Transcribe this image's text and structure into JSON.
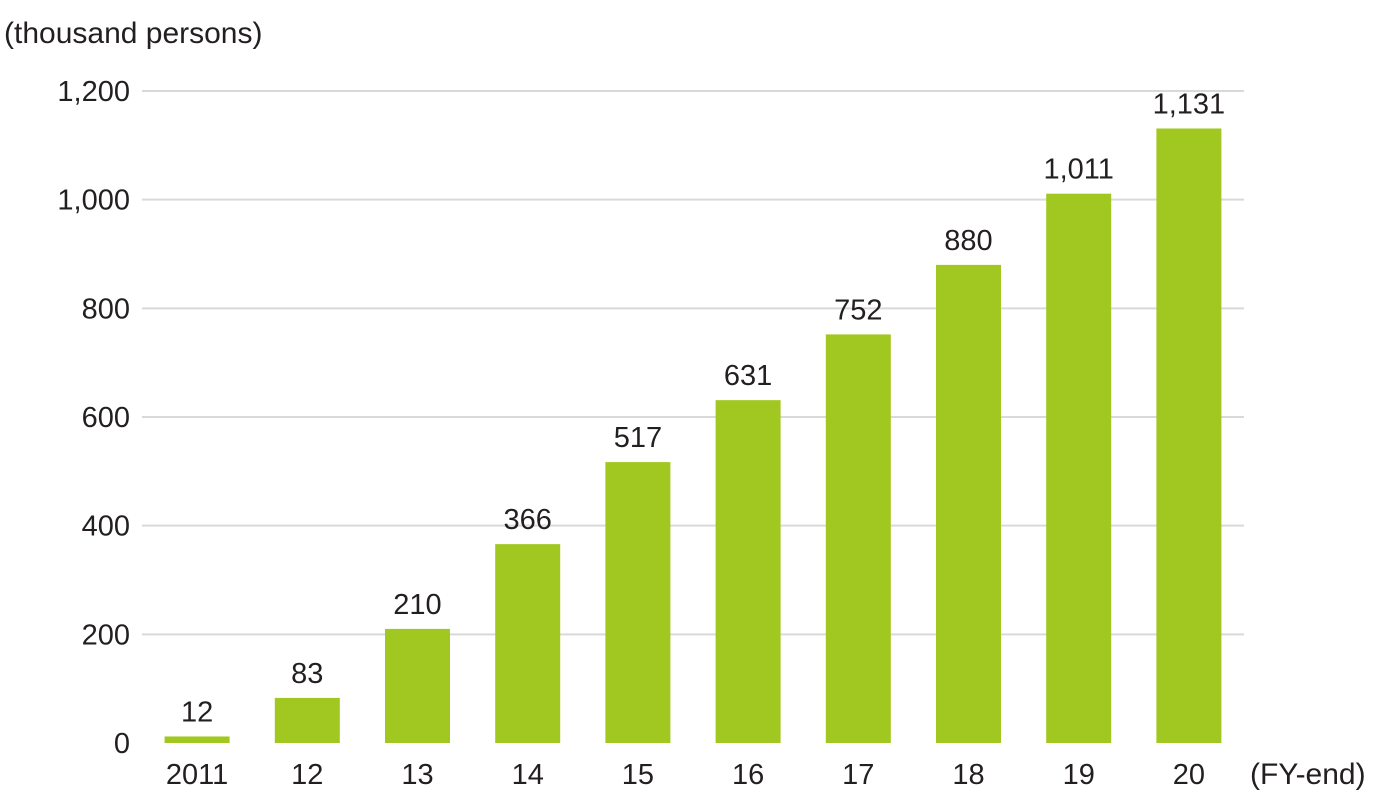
{
  "chart_data": {
    "type": "bar",
    "y_unit_label": "(thousand persons)",
    "x_unit_label": "(FY-end)",
    "categories": [
      "2011",
      "12",
      "13",
      "14",
      "15",
      "16",
      "17",
      "18",
      "19",
      "20"
    ],
    "values": [
      12,
      83,
      210,
      366,
      517,
      631,
      752,
      880,
      1011,
      1131
    ],
    "value_labels": [
      "12",
      "83",
      "210",
      "366",
      "517",
      "631",
      "752",
      "880",
      "1,011",
      "1,131"
    ],
    "ylim": [
      0,
      1200
    ],
    "y_ticks": [
      0,
      200,
      400,
      600,
      800,
      1000,
      1200
    ],
    "y_tick_labels": [
      "0",
      "200",
      "400",
      "600",
      "800",
      "1,000",
      "1,200"
    ],
    "grid": true,
    "bar_color": "#a1c820",
    "grid_color": "#d9d9d9"
  }
}
